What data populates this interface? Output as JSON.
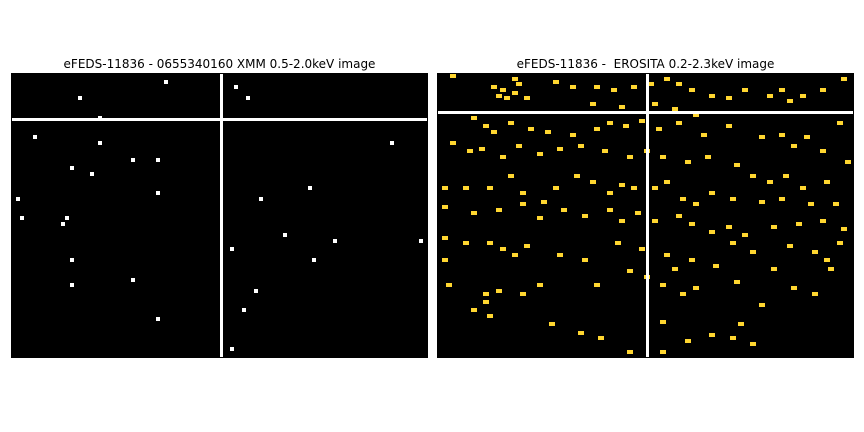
{
  "panels": [
    {
      "title": "eFEDS-11836 - 0655340160 XMM 0.5-2.0keV image",
      "pixel_color": "#ffffff",
      "crosshair_color": "#ffffff",
      "crosshair_frac": [
        0.5,
        0.155
      ],
      "pixels": [
        [
          0.37,
          0.02
        ],
        [
          0.16,
          0.08
        ],
        [
          0.21,
          0.15
        ],
        [
          0.05,
          0.22
        ],
        [
          0.21,
          0.24
        ],
        [
          0.29,
          0.3
        ],
        [
          0.35,
          0.3
        ],
        [
          0.14,
          0.33
        ],
        [
          0.19,
          0.35
        ],
        [
          0.01,
          0.44
        ],
        [
          0.35,
          0.42
        ],
        [
          0.02,
          0.51
        ],
        [
          0.12,
          0.53
        ],
        [
          0.13,
          0.51
        ],
        [
          0.14,
          0.66
        ],
        [
          0.14,
          0.75
        ],
        [
          0.29,
          0.73
        ],
        [
          0.35,
          0.87
        ],
        [
          0.54,
          0.04
        ],
        [
          0.57,
          0.08
        ],
        [
          0.92,
          0.24
        ],
        [
          0.72,
          0.4
        ],
        [
          0.6,
          0.44
        ],
        [
          0.53,
          0.62
        ],
        [
          0.66,
          0.57
        ],
        [
          0.78,
          0.59
        ],
        [
          0.99,
          0.59
        ],
        [
          0.73,
          0.66
        ],
        [
          0.59,
          0.77
        ],
        [
          0.56,
          0.84
        ],
        [
          0.53,
          0.98
        ]
      ],
      "pixel_size": [
        0.018,
        0.025
      ]
    },
    {
      "title": "eFEDS-11836 -  EROSITA 0.2-2.3keV image",
      "pixel_color": "#ffd630",
      "crosshair_color": "#ffffff",
      "crosshair_frac": [
        0.5,
        0.13
      ],
      "pixels": [
        [
          0.03,
          0.0
        ],
        [
          0.18,
          0.01
        ],
        [
          0.19,
          0.03
        ],
        [
          0.13,
          0.04
        ],
        [
          0.15,
          0.05
        ],
        [
          0.14,
          0.07
        ],
        [
          0.16,
          0.08
        ],
        [
          0.18,
          0.06
        ],
        [
          0.21,
          0.08
        ],
        [
          0.28,
          0.02
        ],
        [
          0.32,
          0.04
        ],
        [
          0.38,
          0.04
        ],
        [
          0.42,
          0.05
        ],
        [
          0.47,
          0.04
        ],
        [
          0.51,
          0.03
        ],
        [
          0.55,
          0.01
        ],
        [
          0.58,
          0.03
        ],
        [
          0.61,
          0.05
        ],
        [
          0.66,
          0.07
        ],
        [
          0.7,
          0.08
        ],
        [
          0.74,
          0.05
        ],
        [
          0.8,
          0.07
        ],
        [
          0.83,
          0.05
        ],
        [
          0.85,
          0.09
        ],
        [
          0.88,
          0.07
        ],
        [
          0.93,
          0.05
        ],
        [
          0.98,
          0.01
        ],
        [
          0.37,
          0.1
        ],
        [
          0.44,
          0.11
        ],
        [
          0.52,
          0.1
        ],
        [
          0.57,
          0.12
        ],
        [
          0.62,
          0.14
        ],
        [
          0.08,
          0.15
        ],
        [
          0.11,
          0.18
        ],
        [
          0.13,
          0.2
        ],
        [
          0.17,
          0.17
        ],
        [
          0.22,
          0.19
        ],
        [
          0.26,
          0.2
        ],
        [
          0.32,
          0.21
        ],
        [
          0.38,
          0.19
        ],
        [
          0.41,
          0.17
        ],
        [
          0.45,
          0.18
        ],
        [
          0.49,
          0.16
        ],
        [
          0.53,
          0.19
        ],
        [
          0.58,
          0.17
        ],
        [
          0.64,
          0.21
        ],
        [
          0.7,
          0.18
        ],
        [
          0.78,
          0.22
        ],
        [
          0.83,
          0.21
        ],
        [
          0.86,
          0.25
        ],
        [
          0.89,
          0.22
        ],
        [
          0.93,
          0.27
        ],
        [
          0.97,
          0.17
        ],
        [
          0.03,
          0.24
        ],
        [
          0.07,
          0.27
        ],
        [
          0.1,
          0.26
        ],
        [
          0.15,
          0.29
        ],
        [
          0.19,
          0.25
        ],
        [
          0.24,
          0.28
        ],
        [
          0.29,
          0.26
        ],
        [
          0.34,
          0.25
        ],
        [
          0.4,
          0.27
        ],
        [
          0.46,
          0.29
        ],
        [
          0.5,
          0.27
        ],
        [
          0.54,
          0.29
        ],
        [
          0.6,
          0.31
        ],
        [
          0.65,
          0.29
        ],
        [
          0.72,
          0.32
        ],
        [
          0.76,
          0.36
        ],
        [
          0.8,
          0.38
        ],
        [
          0.84,
          0.36
        ],
        [
          0.88,
          0.4
        ],
        [
          0.94,
          0.38
        ],
        [
          0.99,
          0.31
        ],
        [
          0.01,
          0.4
        ],
        [
          0.06,
          0.4
        ],
        [
          0.12,
          0.4
        ],
        [
          0.17,
          0.36
        ],
        [
          0.2,
          0.42
        ],
        [
          0.25,
          0.45
        ],
        [
          0.28,
          0.4
        ],
        [
          0.33,
          0.36
        ],
        [
          0.37,
          0.38
        ],
        [
          0.41,
          0.42
        ],
        [
          0.44,
          0.39
        ],
        [
          0.47,
          0.4
        ],
        [
          0.52,
          0.4
        ],
        [
          0.55,
          0.38
        ],
        [
          0.59,
          0.44
        ],
        [
          0.62,
          0.46
        ],
        [
          0.66,
          0.42
        ],
        [
          0.71,
          0.44
        ],
        [
          0.78,
          0.45
        ],
        [
          0.83,
          0.44
        ],
        [
          0.9,
          0.46
        ],
        [
          0.96,
          0.46
        ],
        [
          0.01,
          0.47
        ],
        [
          0.08,
          0.49
        ],
        [
          0.14,
          0.48
        ],
        [
          0.2,
          0.46
        ],
        [
          0.24,
          0.51
        ],
        [
          0.3,
          0.48
        ],
        [
          0.35,
          0.5
        ],
        [
          0.41,
          0.48
        ],
        [
          0.44,
          0.52
        ],
        [
          0.48,
          0.49
        ],
        [
          0.52,
          0.52
        ],
        [
          0.58,
          0.5
        ],
        [
          0.61,
          0.53
        ],
        [
          0.66,
          0.56
        ],
        [
          0.7,
          0.54
        ],
        [
          0.74,
          0.57
        ],
        [
          0.81,
          0.54
        ],
        [
          0.87,
          0.53
        ],
        [
          0.93,
          0.52
        ],
        [
          0.98,
          0.55
        ],
        [
          0.01,
          0.58
        ],
        [
          0.06,
          0.6
        ],
        [
          0.12,
          0.6
        ],
        [
          0.15,
          0.62
        ],
        [
          0.18,
          0.64
        ],
        [
          0.21,
          0.61
        ],
        [
          0.29,
          0.64
        ],
        [
          0.35,
          0.66
        ],
        [
          0.43,
          0.6
        ],
        [
          0.49,
          0.62
        ],
        [
          0.55,
          0.64
        ],
        [
          0.57,
          0.69
        ],
        [
          0.61,
          0.66
        ],
        [
          0.67,
          0.68
        ],
        [
          0.71,
          0.6
        ],
        [
          0.76,
          0.63
        ],
        [
          0.81,
          0.69
        ],
        [
          0.85,
          0.61
        ],
        [
          0.91,
          0.63
        ],
        [
          0.94,
          0.66
        ],
        [
          0.97,
          0.6
        ],
        [
          0.01,
          0.66
        ],
        [
          0.02,
          0.75
        ],
        [
          0.14,
          0.77
        ],
        [
          0.2,
          0.78
        ],
        [
          0.24,
          0.75
        ],
        [
          0.11,
          0.78
        ],
        [
          0.11,
          0.81
        ],
        [
          0.08,
          0.84
        ],
        [
          0.12,
          0.86
        ],
        [
          0.38,
          0.75
        ],
        [
          0.46,
          0.7
        ],
        [
          0.5,
          0.72
        ],
        [
          0.54,
          0.75
        ],
        [
          0.59,
          0.78
        ],
        [
          0.62,
          0.76
        ],
        [
          0.72,
          0.74
        ],
        [
          0.78,
          0.82
        ],
        [
          0.86,
          0.76
        ],
        [
          0.91,
          0.78
        ],
        [
          0.95,
          0.69
        ],
        [
          0.27,
          0.89
        ],
        [
          0.34,
          0.92
        ],
        [
          0.39,
          0.94
        ],
        [
          0.46,
          0.99
        ],
        [
          0.54,
          0.99
        ],
        [
          0.54,
          0.88
        ],
        [
          0.6,
          0.95
        ],
        [
          0.66,
          0.93
        ],
        [
          0.71,
          0.94
        ],
        [
          0.73,
          0.89
        ],
        [
          0.76,
          0.96
        ]
      ],
      "pixel_size": [
        0.018,
        0.025
      ]
    }
  ]
}
